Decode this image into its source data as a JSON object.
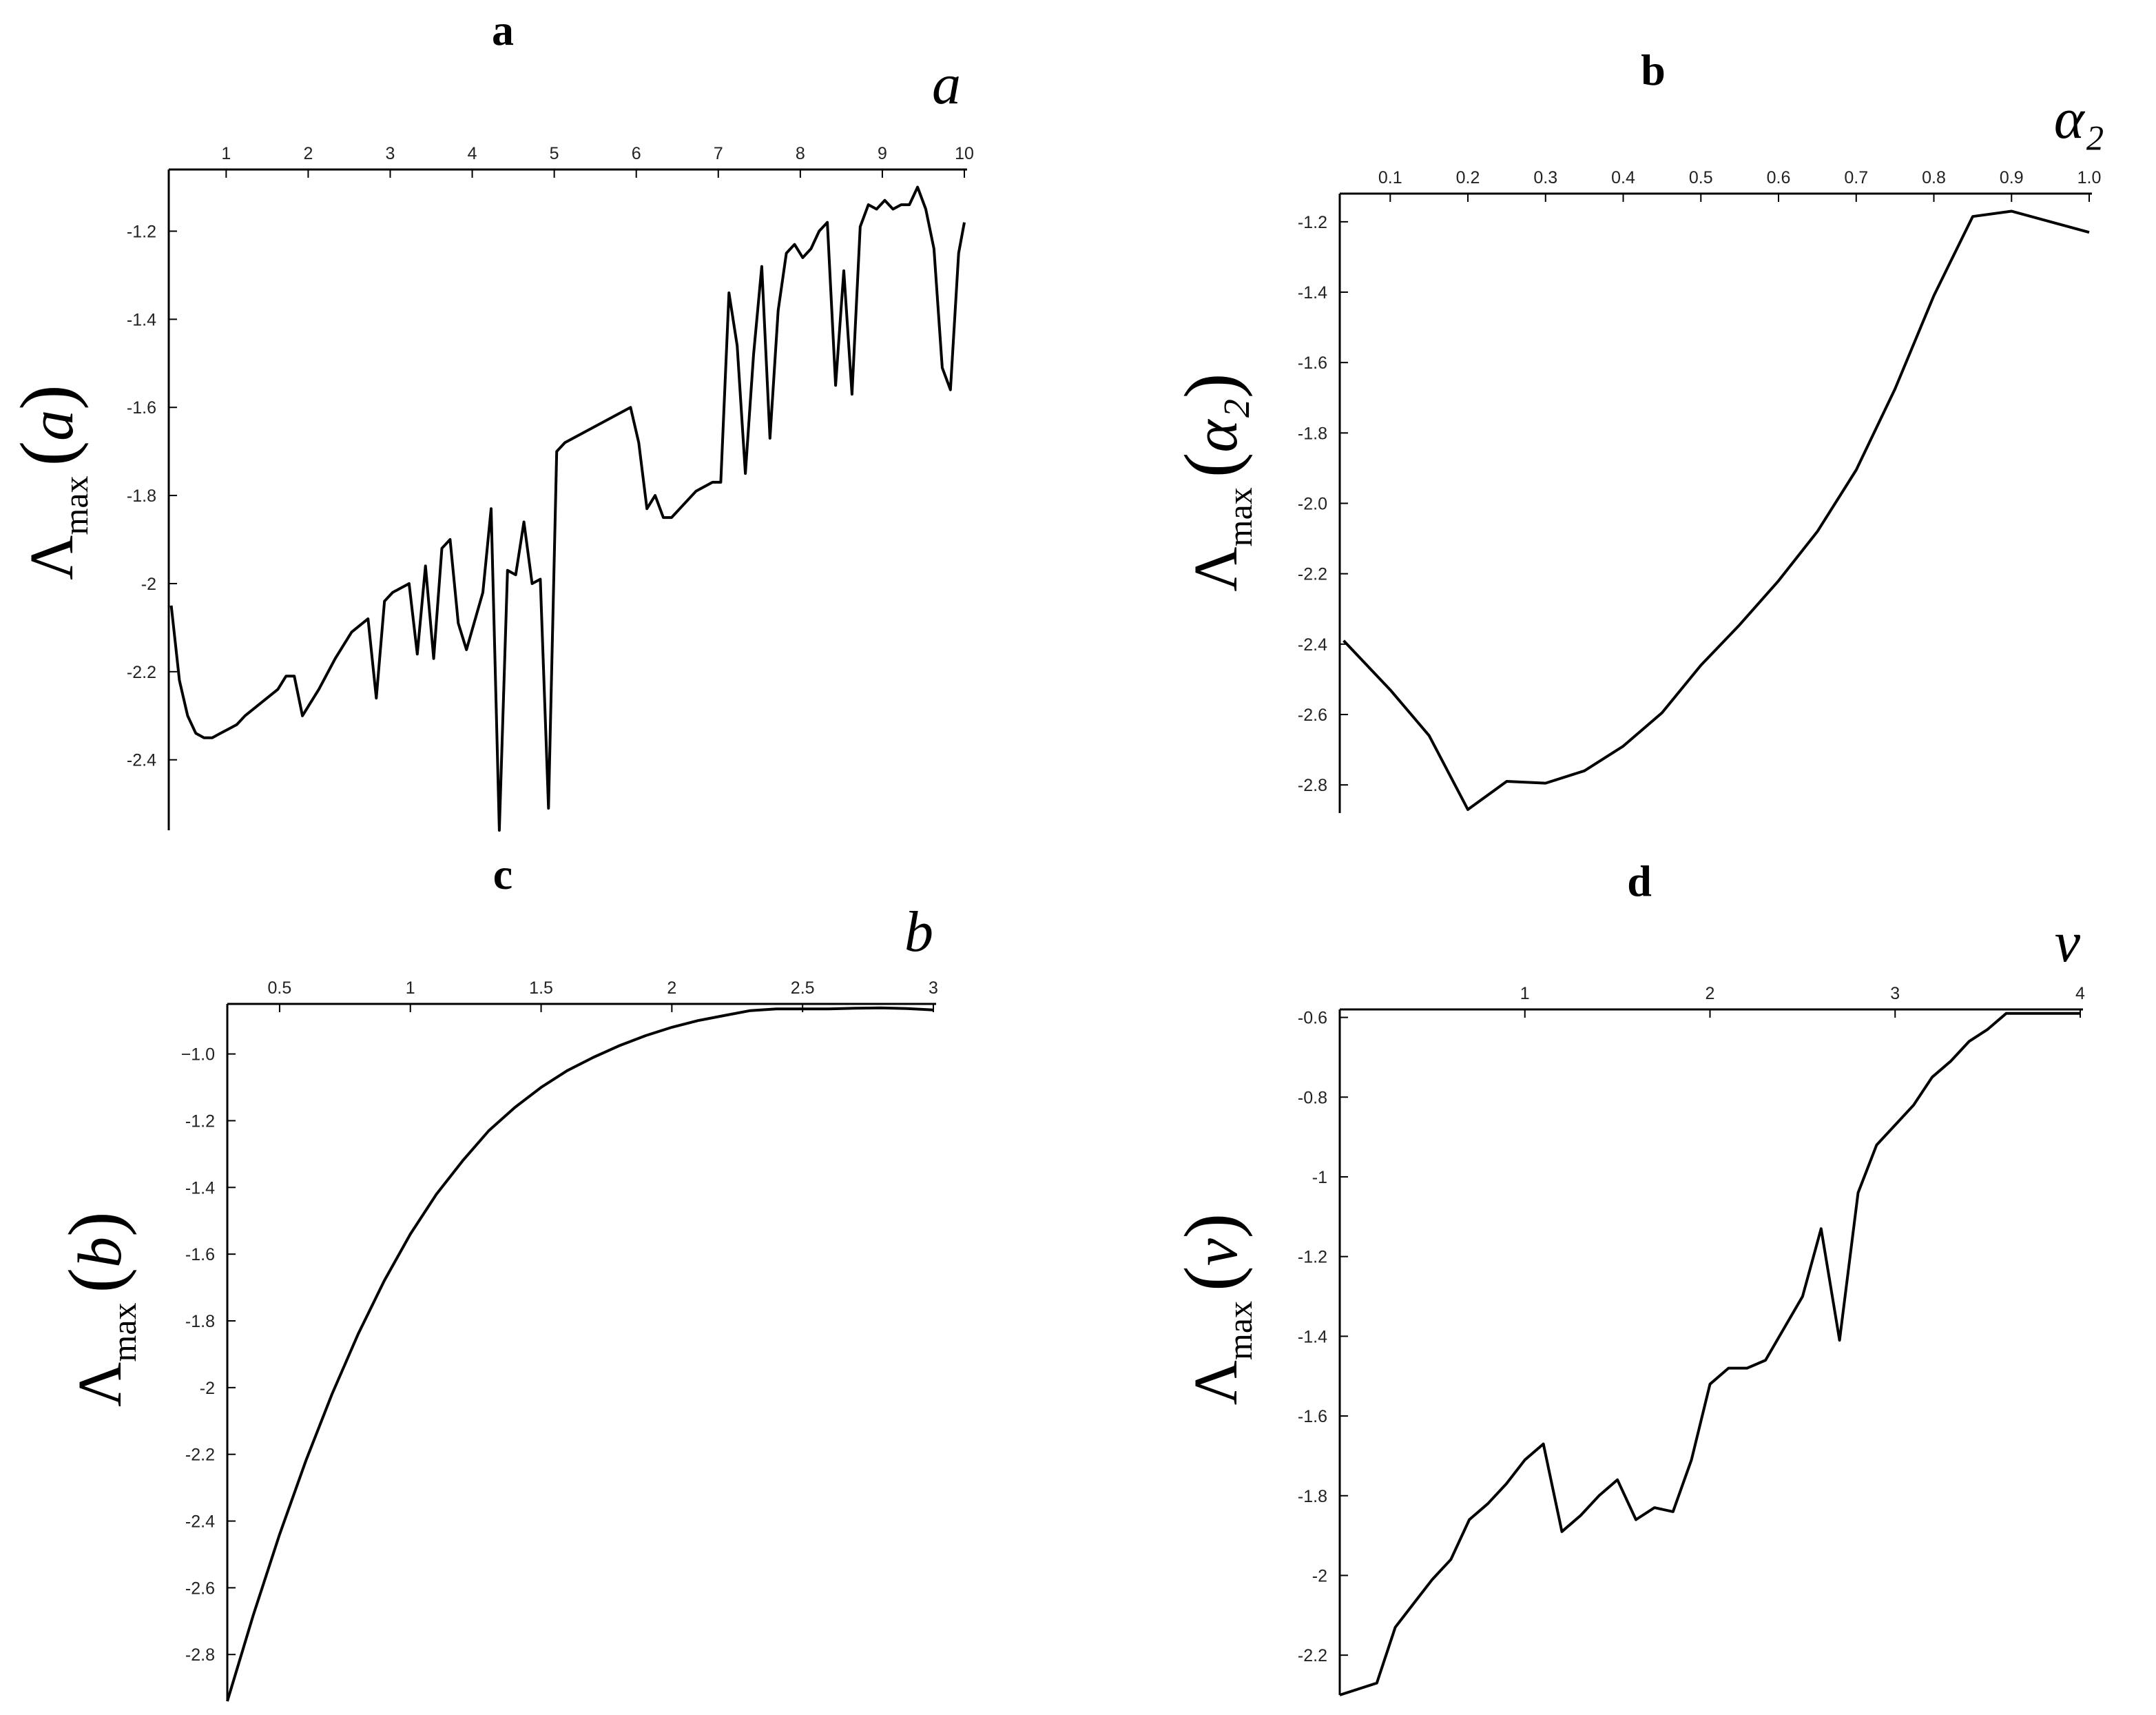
{
  "chart_data": [
    {
      "id": "a",
      "type": "line",
      "panel_label": "a",
      "x_var": "a",
      "ylabel": {
        "symbol": "Λ",
        "sub": "max",
        "arg": "a",
        "open": "(",
        "close": ")"
      },
      "xlim": [
        0.3,
        10
      ],
      "ylim": [
        -2.56,
        -1.06
      ],
      "xticks": [
        1,
        2,
        3,
        4,
        5,
        6,
        7,
        8,
        9,
        10
      ],
      "xtick_labels": [
        "1",
        "2",
        "3",
        "4",
        "5",
        "6",
        "7",
        "8",
        "9",
        "10"
      ],
      "yticks": [
        -1.2,
        -1.4,
        -1.6,
        -1.8,
        -2,
        -2.2,
        -2.4
      ],
      "ytick_labels": [
        "-1.2",
        "-1.4",
        "-1.6",
        "-1.8",
        "-2",
        "-2.2",
        "-2.4"
      ],
      "x": [
        0.33,
        0.43,
        0.53,
        0.63,
        0.73,
        0.83,
        0.93,
        1.03,
        1.13,
        1.23,
        1.43,
        1.63,
        1.73,
        1.83,
        1.93,
        2.13,
        2.33,
        2.53,
        2.73,
        2.83,
        2.93,
        3.03,
        3.23,
        3.33,
        3.43,
        3.53,
        3.63,
        3.73,
        3.83,
        3.93,
        4.13,
        4.23,
        4.33,
        4.43,
        4.53,
        4.63,
        4.73,
        4.83,
        4.93,
        5.03,
        5.13,
        5.93,
        6.03,
        6.13,
        6.23,
        6.33,
        6.43,
        6.53,
        6.73,
        6.93,
        7.03,
        7.13,
        7.23,
        7.33,
        7.43,
        7.53,
        7.63,
        7.73,
        7.83,
        7.93,
        8.03,
        8.13,
        8.23,
        8.33,
        8.43,
        8.53,
        8.63,
        8.73,
        8.83,
        8.93,
        9.03,
        9.13,
        9.23,
        9.33,
        9.43,
        9.53,
        9.63,
        9.73,
        9.83,
        9.93,
        10.0
      ],
      "y": [
        -2.05,
        -2.22,
        -2.3,
        -2.34,
        -2.35,
        -2.35,
        -2.34,
        -2.33,
        -2.32,
        -2.3,
        -2.27,
        -2.24,
        -2.21,
        -2.21,
        -2.3,
        -2.24,
        -2.17,
        -2.11,
        -2.08,
        -2.26,
        -2.04,
        -2.02,
        -2.0,
        -2.16,
        -1.96,
        -2.17,
        -1.92,
        -1.9,
        -2.09,
        -2.15,
        -2.02,
        -1.83,
        -2.56,
        -1.97,
        -1.98,
        -1.86,
        -2.0,
        -1.99,
        -2.51,
        -1.7,
        -1.68,
        -1.6,
        -1.68,
        -1.83,
        -1.8,
        -1.85,
        -1.85,
        -1.83,
        -1.79,
        -1.77,
        -1.77,
        -1.34,
        -1.46,
        -1.75,
        -1.48,
        -1.28,
        -1.67,
        -1.38,
        -1.25,
        -1.23,
        -1.26,
        -1.24,
        -1.2,
        -1.18,
        -1.55,
        -1.29,
        -1.57,
        -1.19,
        -1.14,
        -1.15,
        -1.13,
        -1.15,
        -1.14,
        -1.14,
        -1.1,
        -1.15,
        -1.24,
        -1.51,
        -1.56,
        -1.25,
        -1.18
      ]
    },
    {
      "id": "b",
      "type": "line",
      "panel_label": "b",
      "x_var": "α₂",
      "ylabel": {
        "symbol": "Λ",
        "sub": "max",
        "arg": "α₂",
        "open": "(",
        "close": ")"
      },
      "xlim": [
        0.035,
        1.0
      ],
      "ylim": [
        -2.88,
        -1.12
      ],
      "xticks": [
        0.1,
        0.2,
        0.3,
        0.4,
        0.5,
        0.6,
        0.7,
        0.8,
        0.9,
        1.0
      ],
      "xtick_labels": [
        "0.1",
        "0.2",
        "0.3",
        "0.4",
        "0.5",
        "0.6",
        "0.7",
        "0.8",
        "0.9",
        "1.0"
      ],
      "yticks": [
        -1.2,
        -1.4,
        -1.6,
        -1.8,
        -2.0,
        -2.2,
        -2.4,
        -2.6,
        -2.8
      ],
      "ytick_labels": [
        "-1.2",
        "-1.4",
        "-1.6",
        "-1.8",
        "-2.0",
        "-2.2",
        "-2.4",
        "-2.6",
        "-2.8"
      ],
      "x": [
        0.04,
        0.1,
        0.15,
        0.2,
        0.25,
        0.3,
        0.35,
        0.4,
        0.45,
        0.5,
        0.55,
        0.6,
        0.65,
        0.7,
        0.75,
        0.8,
        0.85,
        0.9,
        1.0
      ],
      "y": [
        -2.39,
        -2.53,
        -2.66,
        -2.87,
        -2.79,
        -2.795,
        -2.76,
        -2.69,
        -2.595,
        -2.46,
        -2.345,
        -2.22,
        -2.08,
        -1.905,
        -1.675,
        -1.41,
        -1.185,
        -1.17,
        -1.23
      ]
    },
    {
      "id": "c",
      "type": "line",
      "panel_label": "c",
      "x_var": "b",
      "ylabel": {
        "symbol": "Λ",
        "sub": "max",
        "arg": "b",
        "open": "(",
        "close": ")"
      },
      "xlim": [
        0.3,
        3.0
      ],
      "ylim": [
        -2.94,
        -0.85
      ],
      "xticks": [
        0.5,
        1,
        1.5,
        2,
        2.5,
        3
      ],
      "xtick_labels": [
        "0.5",
        "1",
        "1.5",
        "2",
        "2.5",
        "3"
      ],
      "yticks": [
        -1.0,
        -1.2,
        -1.4,
        -1.6,
        -1.8,
        -2,
        -2.2,
        -2.4,
        -2.6,
        -2.8
      ],
      "ytick_labels": [
        "−1.0",
        "-1.2",
        "-1.4",
        "-1.6",
        "-1.8",
        "-2",
        "-2.2",
        "-2.4",
        "-2.6",
        "-2.8"
      ],
      "x": [
        0.3,
        0.4,
        0.5,
        0.6,
        0.7,
        0.8,
        0.9,
        1.0,
        1.1,
        1.2,
        1.3,
        1.4,
        1.5,
        1.6,
        1.7,
        1.8,
        1.9,
        2.0,
        2.1,
        2.2,
        2.3,
        2.4,
        2.5,
        2.6,
        2.7,
        2.8,
        2.9,
        3.0
      ],
      "y": [
        -2.94,
        -2.68,
        -2.44,
        -2.22,
        -2.02,
        -1.84,
        -1.68,
        -1.54,
        -1.42,
        -1.32,
        -1.23,
        -1.16,
        -1.1,
        -1.05,
        -1.01,
        -0.975,
        -0.945,
        -0.92,
        -0.9,
        -0.885,
        -0.87,
        -0.865,
        -0.865,
        -0.865,
        -0.863,
        -0.862,
        -0.864,
        -0.868
      ]
    },
    {
      "id": "d",
      "type": "line",
      "panel_label": "d",
      "x_var": "v",
      "ylabel": {
        "symbol": "Λ",
        "sub": "max",
        "arg": "v",
        "open": "(",
        "close": ")"
      },
      "xlim": [
        0.0,
        4.0
      ],
      "ylim": [
        -2.3,
        -0.58
      ],
      "xticks": [
        1,
        2,
        3,
        4
      ],
      "xtick_labels": [
        "1",
        "2",
        "3",
        "4"
      ],
      "yticks": [
        -0.6,
        -0.8,
        -1,
        -1.2,
        -1.4,
        -1.6,
        -1.8,
        -2,
        -2.2
      ],
      "ytick_labels": [
        "-0.6",
        "-0.8",
        "-1",
        "-1.2",
        "-1.4",
        "-1.6",
        "-1.8",
        "-2",
        "-2.2"
      ],
      "x": [
        0.0,
        0.2,
        0.3,
        0.4,
        0.5,
        0.6,
        0.7,
        0.8,
        0.9,
        1.0,
        1.1,
        1.2,
        1.3,
        1.4,
        1.5,
        1.6,
        1.7,
        1.8,
        1.9,
        2.0,
        2.1,
        2.2,
        2.3,
        2.4,
        2.5,
        2.6,
        2.7,
        2.8,
        2.9,
        3.0,
        3.1,
        3.2,
        3.3,
        3.4,
        3.5,
        3.6,
        3.7,
        3.8,
        3.9,
        4.0
      ],
      "y": [
        -2.3,
        -2.27,
        -2.13,
        -2.07,
        -2.01,
        -1.96,
        -1.86,
        -1.82,
        -1.77,
        -1.71,
        -1.67,
        -1.89,
        -1.85,
        -1.8,
        -1.76,
        -1.86,
        -1.83,
        -1.84,
        -1.71,
        -1.52,
        -1.48,
        -1.48,
        -1.46,
        -1.38,
        -1.3,
        -1.13,
        -1.41,
        -1.04,
        -0.92,
        -0.87,
        -0.82,
        -0.75,
        -0.71,
        -0.66,
        -0.63,
        -0.59,
        -0.59,
        -0.59,
        -0.59,
        -0.59
      ]
    }
  ]
}
